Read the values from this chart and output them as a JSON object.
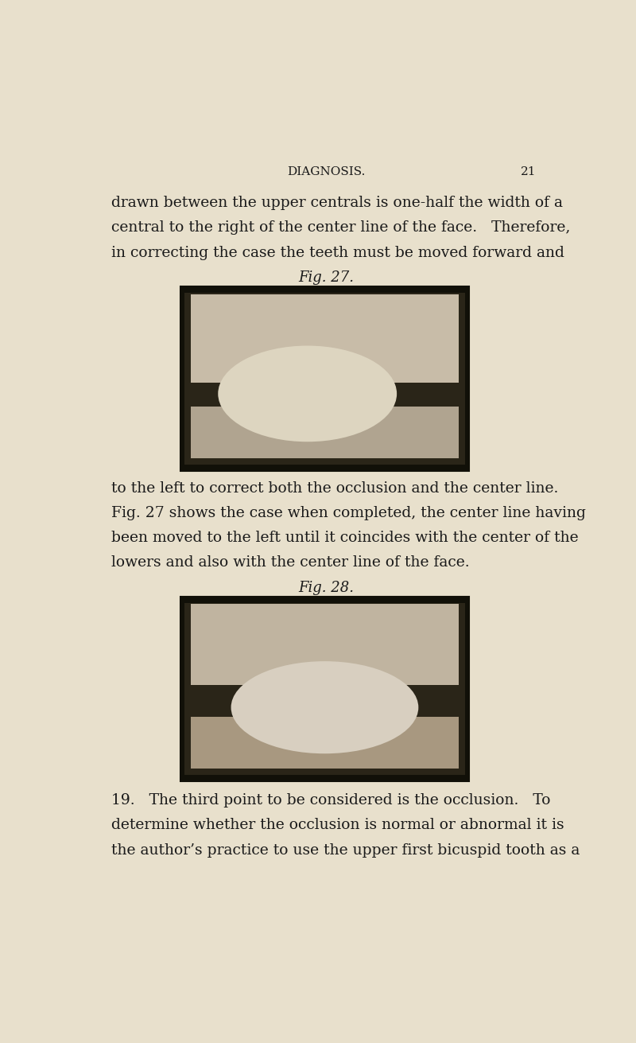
{
  "background_color": "#e8e0cc",
  "header_text": "DIAGNOSIS.",
  "page_number": "21",
  "header_fontsize": 11,
  "body_fontsize": 13.5,
  "caption_fontsize": 13,
  "text_color": "#1a1a1a",
  "paragraph1_lines": [
    "drawn between the upper centrals is one-half the width of a",
    "central to the right of the center line of the face.   Therefore,",
    "in correcting the case the teeth must be moved forward and"
  ],
  "caption1": "Fig. 27.",
  "paragraph2_lines": [
    "to the left to correct both the occlusion and the center line.",
    "Fig. 27 shows the case when completed, the center line having",
    "been moved to the left until it coincides with the center of the",
    "lowers and also with the center line of the face."
  ],
  "caption2": "Fig. 28.",
  "paragraph3_lines": [
    "19.   The third point to be considered is the occlusion.   To",
    "determine whether the occlusion is normal or abnormal it is",
    "the author’s practice to use the upper first bicuspid tooth as a"
  ]
}
